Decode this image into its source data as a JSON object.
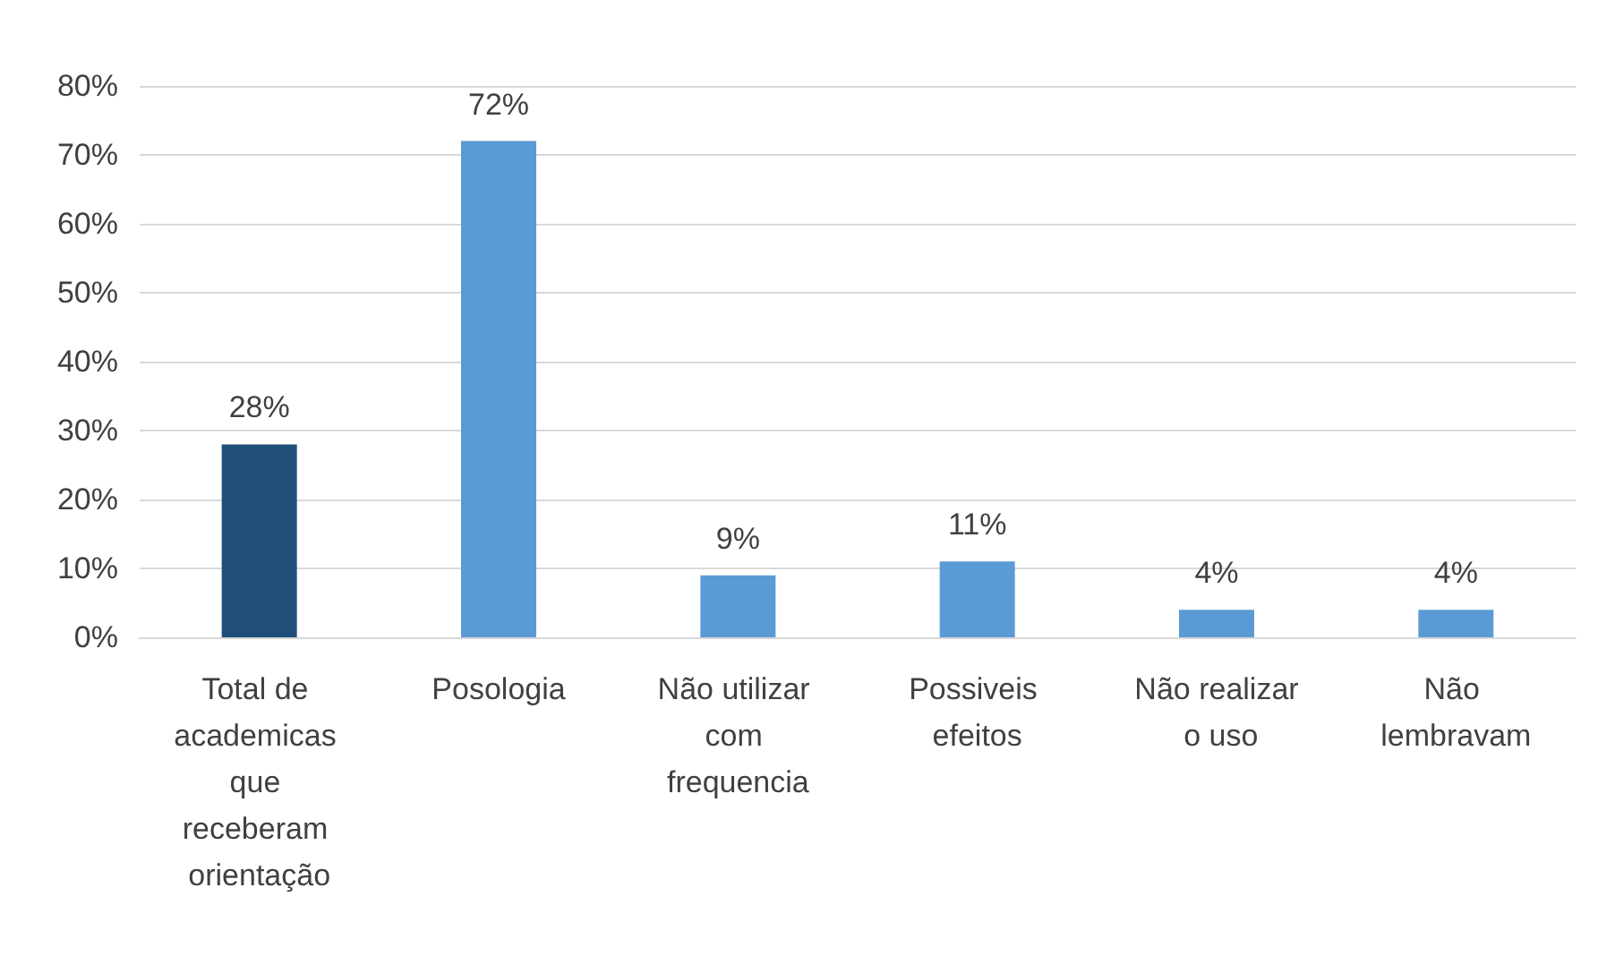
{
  "chart_data": {
    "type": "bar",
    "categories": [
      "Total de academicas que receberam orientação",
      "Posologia",
      "Não utilizar com frequencia",
      "Possiveis efeitos",
      "Não realizar o uso",
      "Não lembravam"
    ],
    "values": [
      28,
      72,
      9,
      11,
      4,
      4
    ],
    "colors": [
      "#1f4e79",
      "#5b9bd5",
      "#5b9bd5",
      "#5b9bd5",
      "#5b9bd5",
      "#5b9bd5"
    ],
    "value_labels": [
      "28%",
      "72%",
      "9%",
      "11%",
      "4%",
      "4%"
    ],
    "ylim": [
      0,
      80
    ],
    "yticks": [
      {
        "value": 0,
        "label": "0%"
      },
      {
        "value": 10,
        "label": "10%"
      },
      {
        "value": 20,
        "label": "20%"
      },
      {
        "value": 30,
        "label": "30%"
      },
      {
        "value": 40,
        "label": "40%"
      },
      {
        "value": 50,
        "label": "50%"
      },
      {
        "value": 60,
        "label": "60%"
      },
      {
        "value": 70,
        "label": "70%"
      },
      {
        "value": 80,
        "label": "80%"
      }
    ],
    "grid": "y"
  }
}
